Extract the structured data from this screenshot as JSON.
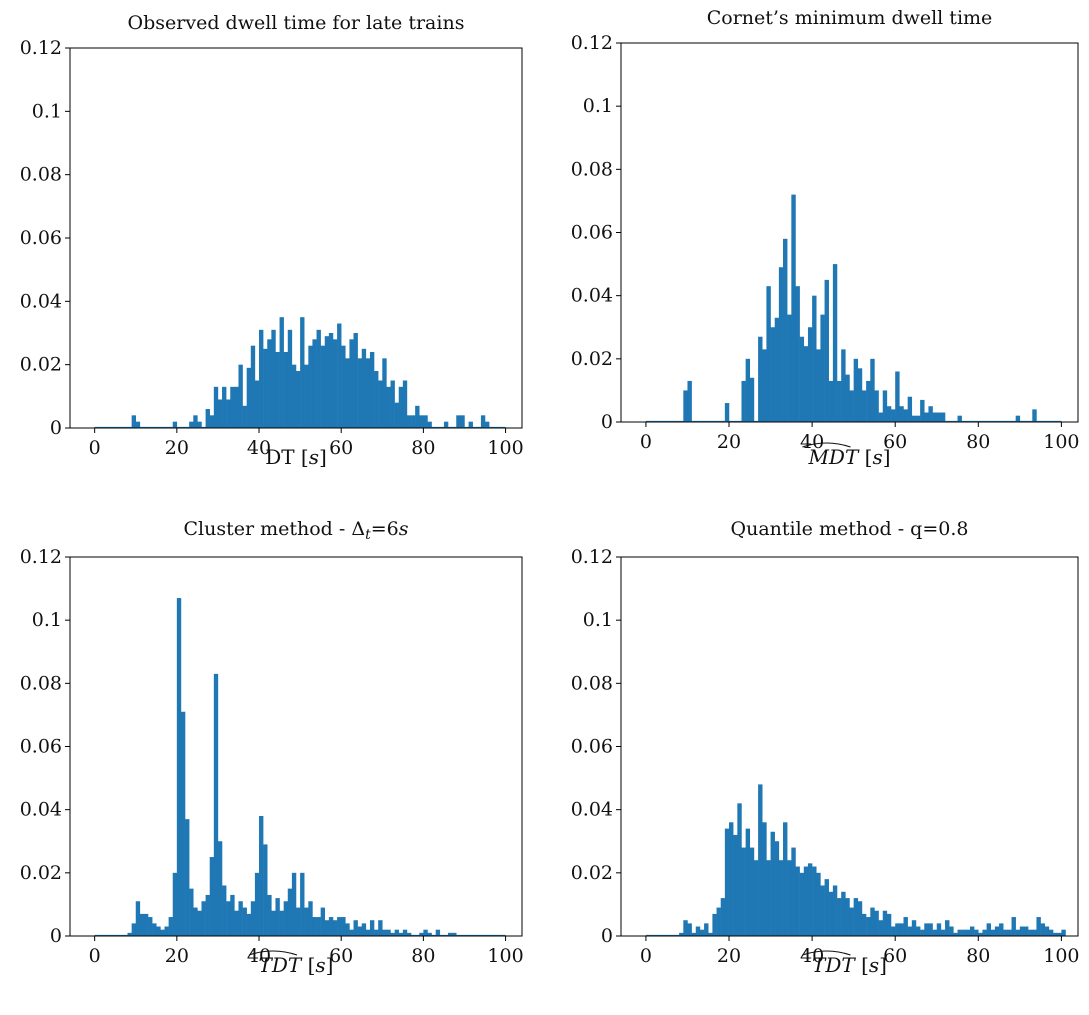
{
  "chart_data": [
    {
      "type": "bar",
      "title": "Observed dwell time for late trains",
      "xlabel": "DT [s]",
      "xlabel_parts": [
        "DT [",
        "s",
        "]"
      ],
      "xlim": [
        -6,
        104
      ],
      "ylim": [
        0,
        0.12
      ],
      "xticks": [
        "0",
        "20",
        "40",
        "60",
        "80",
        "100"
      ],
      "yticks": [
        "0",
        "0.02",
        "0.04",
        "0.06",
        "0.08",
        "0.1",
        "0.12"
      ],
      "bin_start": 0,
      "bin_width": 1,
      "values": [
        0,
        0,
        0,
        0,
        0,
        0,
        0,
        0,
        0,
        0.004,
        0.002,
        0,
        0,
        0,
        0,
        0,
        0,
        0,
        0,
        0.002,
        0,
        0,
        0,
        0.002,
        0.004,
        0.002,
        0,
        0.006,
        0.004,
        0.013,
        0.009,
        0.013,
        0.009,
        0.013,
        0.013,
        0.02,
        0.007,
        0.019,
        0.026,
        0.015,
        0.031,
        0.025,
        0.028,
        0.031,
        0.024,
        0.035,
        0.024,
        0.031,
        0.02,
        0.018,
        0.035,
        0.02,
        0.026,
        0.028,
        0.031,
        0.026,
        0.029,
        0.03,
        0.028,
        0.033,
        0.026,
        0.022,
        0.028,
        0.03,
        0.022,
        0.025,
        0.022,
        0.024,
        0.018,
        0.015,
        0.022,
        0.013,
        0.015,
        0.008,
        0.013,
        0.015,
        0.004,
        0.004,
        0.007,
        0.004,
        0.004,
        0.002,
        0,
        0,
        0,
        0.002,
        0,
        0,
        0.004,
        0.004,
        0,
        0.002,
        0,
        0,
        0.004,
        0.002,
        0,
        0,
        0,
        0,
        0
      ],
      "color": "#1f77b4"
    },
    {
      "type": "bar",
      "title": "Cornet’s minimum dwell time",
      "xlabel_parts": [
        "MDT",
        " [",
        "s",
        "]"
      ],
      "xlabel_hat": true,
      "xlim": [
        -6,
        104
      ],
      "ylim": [
        0,
        0.12
      ],
      "xticks": [
        "0",
        "20",
        "40",
        "60",
        "80",
        "100"
      ],
      "yticks": [
        "0",
        "0.02",
        "0.04",
        "0.06",
        "0.08",
        "0.1",
        "0.12"
      ],
      "bin_start": 0,
      "bin_width": 1,
      "values": [
        0,
        0,
        0,
        0,
        0,
        0,
        0,
        0,
        0,
        0.01,
        0.013,
        0,
        0,
        0,
        0,
        0,
        0,
        0,
        0,
        0.006,
        0,
        0,
        0,
        0.013,
        0.02,
        0.014,
        0,
        0.027,
        0.023,
        0.043,
        0.03,
        0.033,
        0.049,
        0.058,
        0.034,
        0.072,
        0.043,
        0.027,
        0.024,
        0.03,
        0.04,
        0.023,
        0.034,
        0.045,
        0.013,
        0.05,
        0.013,
        0.023,
        0.015,
        0.01,
        0.02,
        0.017,
        0.01,
        0.013,
        0.02,
        0.01,
        0.003,
        0.01,
        0.005,
        0.004,
        0.016,
        0.005,
        0.004,
        0.008,
        0.002,
        0.002,
        0.007,
        0.003,
        0.005,
        0.003,
        0.003,
        0.003,
        0,
        0,
        0,
        0.002,
        0,
        0,
        0,
        0,
        0,
        0,
        0,
        0,
        0,
        0,
        0,
        0,
        0,
        0.002,
        0,
        0,
        0,
        0.004,
        0,
        0,
        0,
        0,
        0,
        0
      ],
      "color": "#1f77b4"
    },
    {
      "type": "bar",
      "title": "Cluster method - Δt=6s",
      "title_parts": [
        "Cluster method - Δ",
        "t",
        "=6",
        "s"
      ],
      "xlabel_parts": [
        "TDT",
        " [",
        "s",
        "]"
      ],
      "xlabel_hat": true,
      "xlim": [
        -6,
        104
      ],
      "ylim": [
        0,
        0.12
      ],
      "xticks": [
        "0",
        "20",
        "40",
        "60",
        "80",
        "100"
      ],
      "yticks": [
        "0",
        "0.02",
        "0.04",
        "0.06",
        "0.08",
        "0.1",
        "0.12"
      ],
      "bin_start": 0,
      "bin_width": 1,
      "values": [
        0,
        0,
        0,
        0,
        0,
        0,
        0,
        0,
        0.001,
        0.004,
        0.011,
        0.007,
        0.007,
        0.006,
        0.004,
        0.003,
        0.002,
        0.003,
        0.006,
        0.02,
        0.107,
        0.071,
        0.037,
        0.015,
        0.009,
        0.008,
        0.011,
        0.013,
        0.025,
        0.083,
        0.03,
        0.016,
        0.011,
        0.013,
        0.008,
        0.011,
        0.009,
        0.007,
        0.011,
        0.02,
        0.038,
        0.029,
        0.013,
        0.008,
        0.012,
        0.008,
        0.011,
        0.015,
        0.02,
        0.009,
        0.02,
        0.009,
        0.011,
        0.006,
        0.006,
        0.009,
        0.005,
        0.006,
        0.005,
        0.006,
        0.006,
        0.004,
        0.002,
        0.005,
        0.003,
        0.004,
        0.002,
        0.005,
        0.002,
        0.005,
        0.002,
        0.002,
        0.001,
        0.002,
        0.001,
        0.002,
        0.001,
        0,
        0,
        0.001,
        0.002,
        0.001,
        0,
        0.002,
        0,
        0,
        0.001,
        0.001,
        0,
        0,
        0,
        0,
        0,
        0,
        0,
        0,
        0,
        0,
        0,
        0,
        0
      ],
      "color": "#1f77b4"
    },
    {
      "type": "bar",
      "title": "Quantile method - q=0.8",
      "xlabel_parts": [
        "TDT",
        " [",
        "s",
        "]"
      ],
      "xlabel_hat": true,
      "xlim": [
        -6,
        104
      ],
      "ylim": [
        0,
        0.12
      ],
      "xticks": [
        "0",
        "20",
        "40",
        "60",
        "80",
        "100"
      ],
      "yticks": [
        "0",
        "0.02",
        "0.04",
        "0.06",
        "0.08",
        "0.1",
        "0.12"
      ],
      "bin_start": 0,
      "bin_width": 1,
      "values": [
        0,
        0,
        0,
        0,
        0,
        0,
        0,
        0,
        0.001,
        0.005,
        0.004,
        0.001,
        0.003,
        0.002,
        0.004,
        0.001,
        0.007,
        0.009,
        0.012,
        0.034,
        0.036,
        0.032,
        0.042,
        0.028,
        0.034,
        0.028,
        0.024,
        0.048,
        0.036,
        0.024,
        0.033,
        0.03,
        0.024,
        0.036,
        0.024,
        0.028,
        0.022,
        0.02,
        0.022,
        0.023,
        0.022,
        0.02,
        0.016,
        0.018,
        0.014,
        0.016,
        0.012,
        0.014,
        0.012,
        0.009,
        0.012,
        0.011,
        0.007,
        0.006,
        0.009,
        0.008,
        0.005,
        0.008,
        0.007,
        0.003,
        0.004,
        0.004,
        0.006,
        0.003,
        0.005,
        0.003,
        0.002,
        0.004,
        0.004,
        0.002,
        0.004,
        0.002,
        0.005,
        0.003,
        0.001,
        0.002,
        0.002,
        0.002,
        0.003,
        0.002,
        0.001,
        0.002,
        0.004,
        0.002,
        0.003,
        0.004,
        0.002,
        0.002,
        0.006,
        0.002,
        0.003,
        0.003,
        0.002,
        0.002,
        0.006,
        0.004,
        0.003,
        0.002,
        0.001,
        0.001,
        0.002
      ],
      "color": "#1f77b4"
    }
  ]
}
